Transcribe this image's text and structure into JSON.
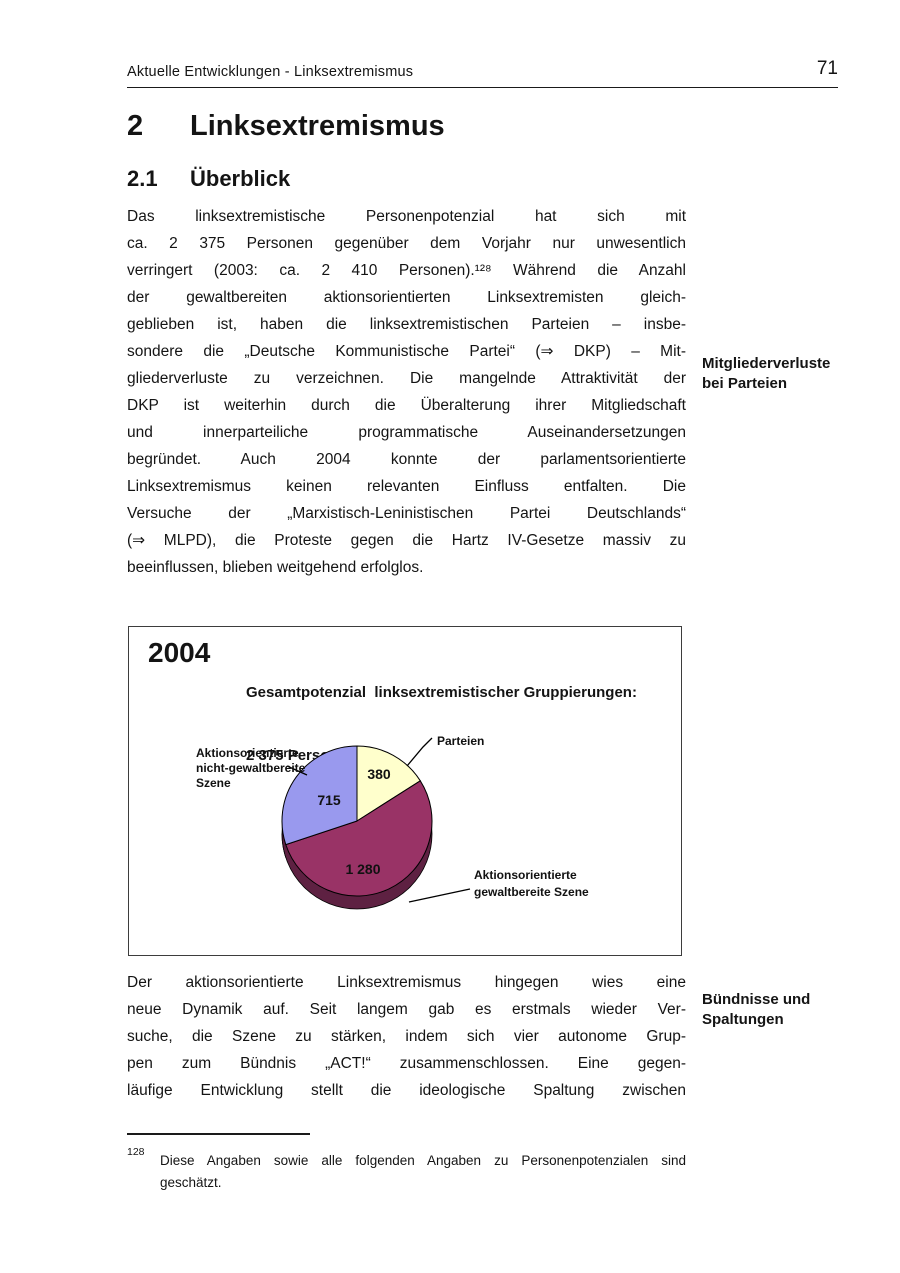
{
  "header": {
    "running_title": "Aktuelle Entwicklungen - Linksextremismus",
    "page_number": "71"
  },
  "headings": {
    "chapter_number": "2",
    "chapter_title": "Linksextremismus",
    "section_number": "2.1",
    "section_title": "Überblick"
  },
  "paragraph1_lines": [
    "Das linksextremistische Personenpotenzial hat sich mit",
    "ca. 2 375 Personen gegenüber dem Vorjahr nur unwesentlich",
    "verringert (2003: ca. 2 410 Personen).¹²⁸ Während die Anzahl",
    "der gewaltbereiten aktionsorientierten Linksextremisten gleich-",
    "geblieben ist, haben die linksextremistischen Parteien – insbe-",
    "sondere die „Deutsche Kommunistische Partei“ (⇒ DKP) – Mit-",
    "gliederverluste zu verzeichnen. Die mangelnde Attraktivität der",
    "DKP ist weiterhin durch die Überalterung ihrer Mitgliedschaft",
    "und innerparteiliche programmatische Auseinandersetzungen",
    "begründet. Auch 2004 konnte der parlamentsorientierte",
    "Linksextremismus keinen relevanten Einfluss entfalten. Die",
    "Versuche der „Marxistisch-Leninistischen Partei Deutschlands“",
    "(⇒ MLPD), die Proteste gegen die Hartz IV-Gesetze massiv zu",
    "beeinflussen, blieben weitgehend erfolglos."
  ],
  "paragraph2_lines": [
    "Der aktionsorientierte Linksextremismus hingegen wies eine",
    "neue Dynamik auf. Seit langem gab es erstmals wieder Ver-",
    "suche, die Szene zu stärken, indem sich vier autonome Grup-",
    "pen zum Bündnis „ACT!“ zusammenschlossen. Eine gegen-",
    "läufige Entwicklung stellt die ideologische Spaltung zwischen"
  ],
  "margin_notes": {
    "note1_lines": [
      "Mitgliederverluste",
      "bei Parteien"
    ],
    "note2_lines": [
      "Bündnisse und",
      "Spaltungen"
    ]
  },
  "figure": {
    "year": "2004",
    "title_line1": "Gesamtpotenzial  linksextremistischer Gruppierungen:",
    "title_line2": "2 375 Personen",
    "labels": {
      "parteien": "Parteien",
      "value_parteien": "380",
      "nichtgewalt_line1": "Aktionsorientierte",
      "nichtgewalt_line2": "nicht-gewaltbereite",
      "nichtgewalt_line3": "Szene",
      "value_nichtgewalt": "715",
      "value_gewalt": "1 280",
      "gewalt_line1": "Aktionsorientierte",
      "gewalt_line2": "gewaltbereite Szene"
    }
  },
  "chart_data": {
    "type": "pie",
    "title": "Gesamtpotenzial linksextremistischer Gruppierungen: 2 375 Personen",
    "year": "2004",
    "categories": [
      "Parteien",
      "Aktionsorientierte gewaltbereite Szene",
      "Aktionsorientierte nicht-gewaltbereite Szene"
    ],
    "values": [
      380,
      1280,
      715
    ],
    "total": 2375,
    "units": "Personen",
    "colors": [
      "#FFFFCC",
      "#993366",
      "#9999EE"
    ],
    "style": "3d-pie, starts at 12 o'clock clockwise, black slice outlines, labels with leader lines"
  },
  "colors": {
    "slice_parteien": "#FFFFCC",
    "slice_gewalt": "#993366",
    "slice_nichtgewalt": "#9999EE",
    "rim_dark": "#5E2142",
    "rim_dark_blue": "#7070C4"
  },
  "footnote": {
    "number": "128",
    "lines": [
      "Diese Angaben sowie alle folgenden Angaben zu Personenpotenzialen sind",
      "geschätzt."
    ]
  }
}
